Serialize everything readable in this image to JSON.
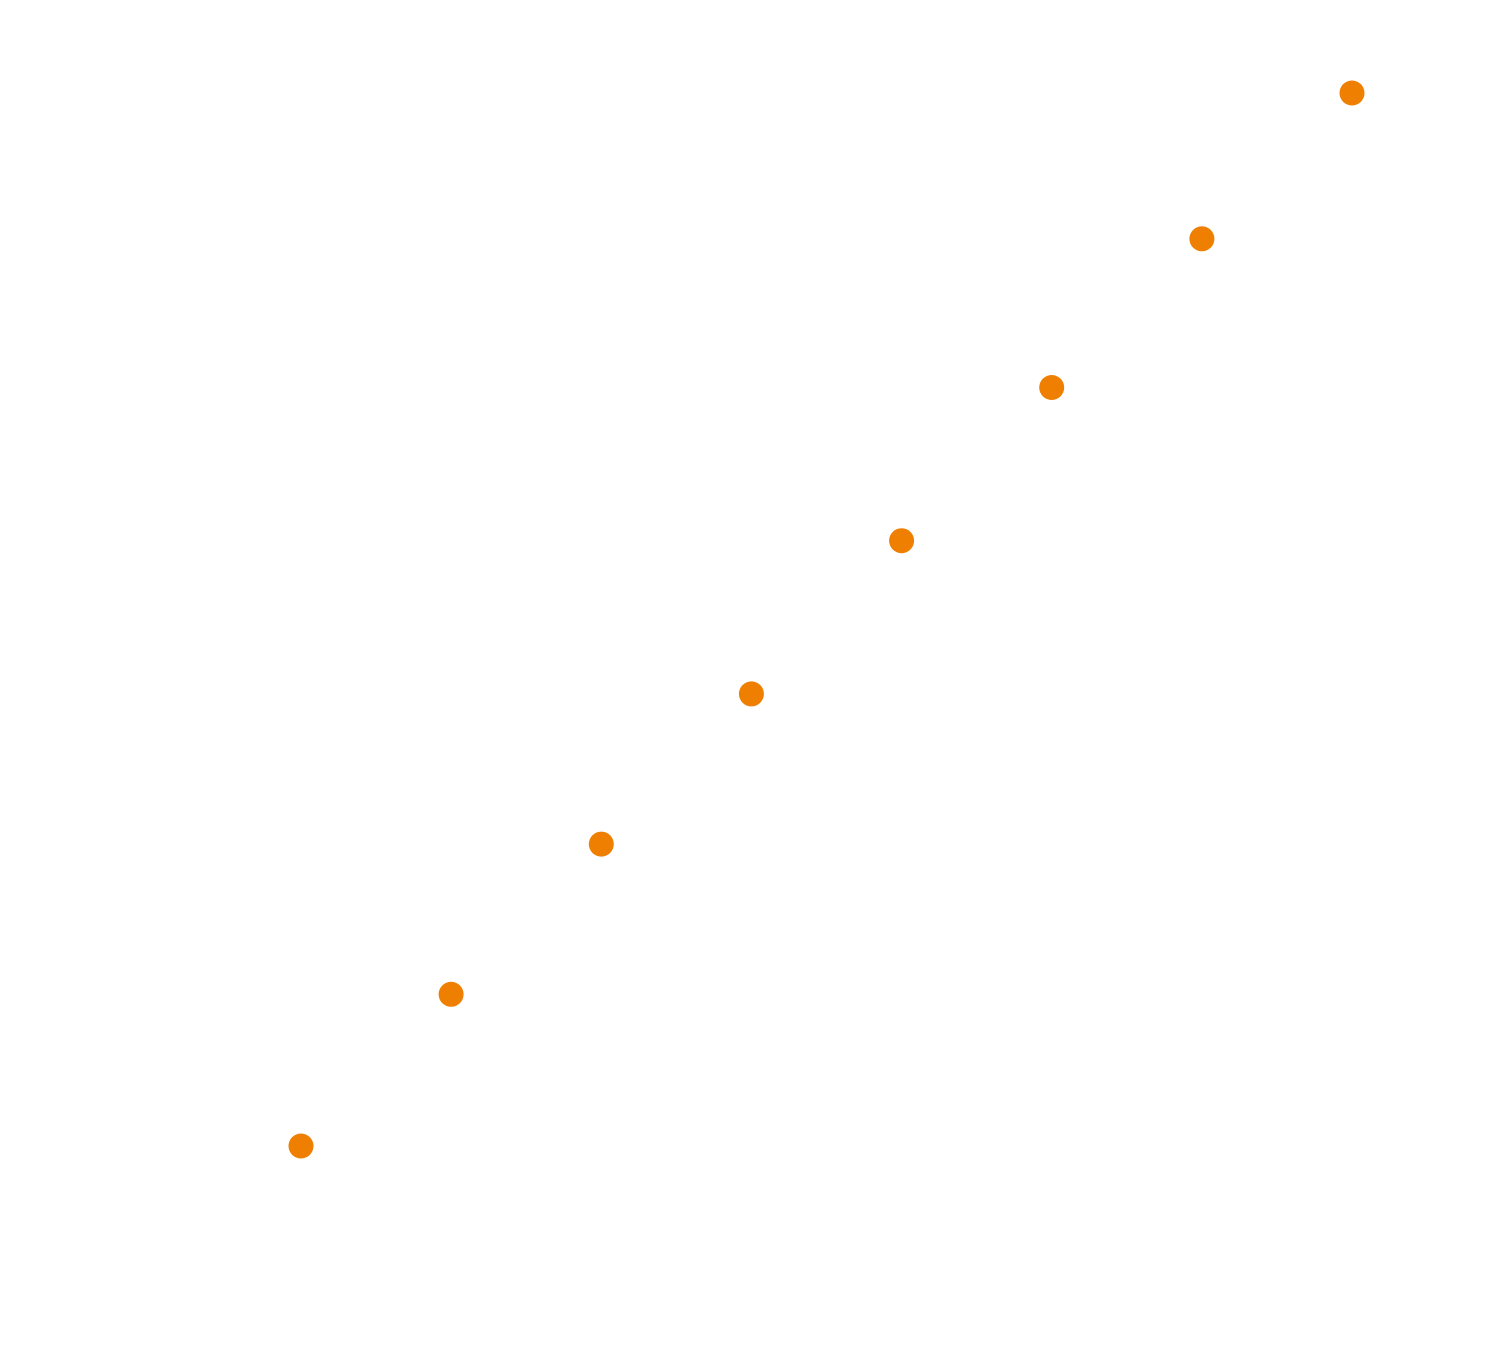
{
  "chart_data": {
    "type": "scatter",
    "title": "",
    "xlabel": "",
    "ylabel": "",
    "grid": false,
    "legend": "none",
    "axes_visible": false,
    "x": [
      1,
      2,
      3,
      4,
      5,
      6,
      7,
      8
    ],
    "y": [
      1.0,
      2.02,
      3.03,
      4.04,
      5.07,
      6.1,
      7.1,
      8.08
    ],
    "marker_color": "#ee7f00"
  }
}
